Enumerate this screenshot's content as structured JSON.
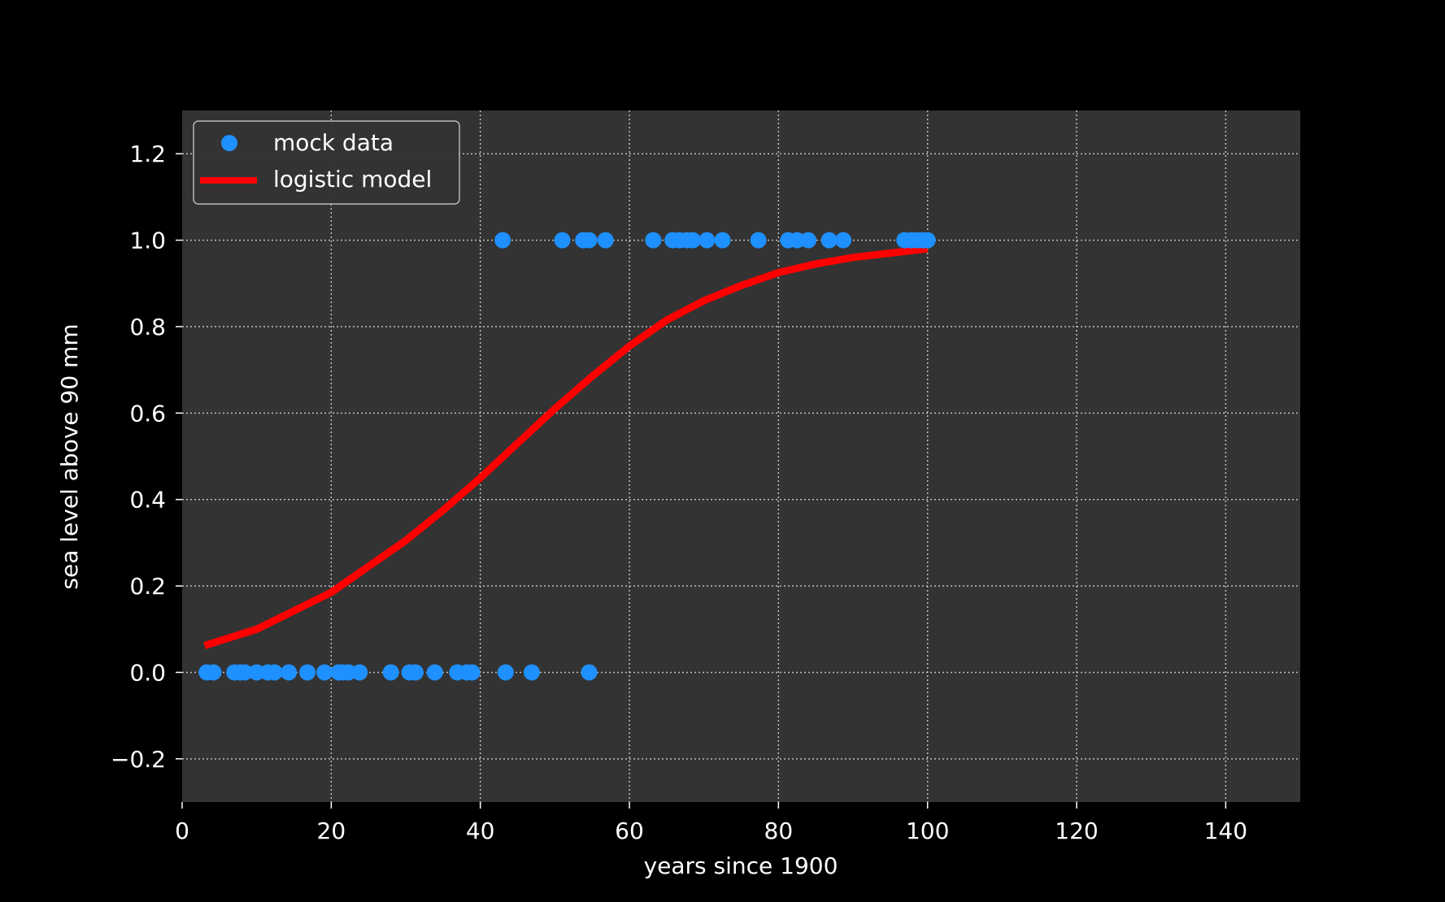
{
  "chart_data": {
    "type": "scatter",
    "xlabel": "years since 1900",
    "ylabel": "sea level above 90 mm",
    "xlim": [
      0,
      150
    ],
    "ylim": [
      -0.3,
      1.3
    ],
    "xticks": [
      0,
      20,
      40,
      60,
      80,
      100,
      120,
      140
    ],
    "xtick_labels": [
      "0",
      "20",
      "40",
      "60",
      "80",
      "100",
      "120",
      "140"
    ],
    "yticks": [
      -0.2,
      0.0,
      0.2,
      0.4,
      0.6,
      0.8,
      1.0,
      1.2
    ],
    "ytick_labels": [
      "−0.2",
      "0.0",
      "0.2",
      "0.4",
      "0.6",
      "0.8",
      "1.0",
      "1.2"
    ],
    "grid": true,
    "legend_position": "top-left",
    "colors": {
      "figure_background": "#000000",
      "axes_background": "#333333",
      "grid": "#bfbfbf",
      "scatter": "#1e90ff",
      "model": "#ff0000",
      "text": "#ffffff"
    },
    "series": [
      {
        "name": "mock data",
        "kind": "scatter",
        "points": [
          [
            3.3,
            0
          ],
          [
            4.2,
            0
          ],
          [
            7.0,
            0
          ],
          [
            7.8,
            0
          ],
          [
            8.4,
            0
          ],
          [
            10.0,
            0
          ],
          [
            11.5,
            0
          ],
          [
            12.4,
            0
          ],
          [
            14.3,
            0
          ],
          [
            16.8,
            0
          ],
          [
            19.1,
            0
          ],
          [
            21.0,
            0
          ],
          [
            21.6,
            0
          ],
          [
            22.3,
            0
          ],
          [
            23.8,
            0
          ],
          [
            28.0,
            0
          ],
          [
            30.5,
            0
          ],
          [
            31.3,
            0
          ],
          [
            33.9,
            0
          ],
          [
            36.9,
            0
          ],
          [
            38.2,
            0
          ],
          [
            38.9,
            0
          ],
          [
            43.4,
            0
          ],
          [
            46.9,
            0
          ],
          [
            54.6,
            0
          ],
          [
            43.0,
            1
          ],
          [
            51.0,
            1
          ],
          [
            53.8,
            1
          ],
          [
            54.6,
            1
          ],
          [
            56.8,
            1
          ],
          [
            63.2,
            1
          ],
          [
            65.8,
            1
          ],
          [
            66.7,
            1
          ],
          [
            67.7,
            1
          ],
          [
            68.5,
            1
          ],
          [
            70.4,
            1
          ],
          [
            72.5,
            1
          ],
          [
            77.3,
            1
          ],
          [
            81.3,
            1
          ],
          [
            82.5,
            1
          ],
          [
            84.0,
            1
          ],
          [
            86.8,
            1
          ],
          [
            88.7,
            1
          ],
          [
            96.9,
            1
          ],
          [
            97.8,
            1
          ],
          [
            98.6,
            1
          ],
          [
            99.4,
            1
          ],
          [
            100.0,
            1
          ]
        ]
      },
      {
        "name": "logistic model",
        "kind": "line",
        "points": [
          [
            3,
            0.062
          ],
          [
            10,
            0.1
          ],
          [
            20,
            0.185
          ],
          [
            30,
            0.305
          ],
          [
            35,
            0.375
          ],
          [
            40,
            0.45
          ],
          [
            45,
            0.53
          ],
          [
            50,
            0.61
          ],
          [
            55,
            0.685
          ],
          [
            60,
            0.755
          ],
          [
            65,
            0.815
          ],
          [
            70,
            0.86
          ],
          [
            75,
            0.895
          ],
          [
            80,
            0.925
          ],
          [
            85,
            0.945
          ],
          [
            90,
            0.96
          ],
          [
            95,
            0.97
          ],
          [
            100,
            0.98
          ]
        ]
      }
    ]
  }
}
